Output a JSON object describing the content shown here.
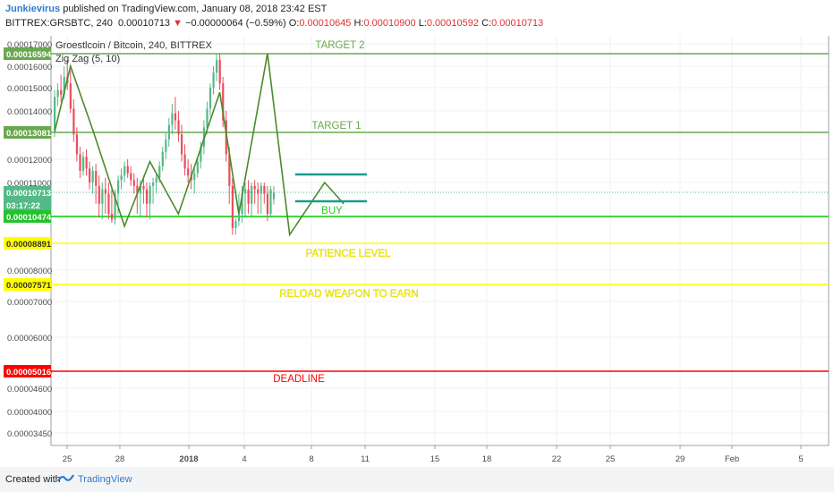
{
  "header": {
    "author": "Junkievirus",
    "published_text": " published on TradingView.com, January 08, 2018 23:42 EST",
    "symbol": "BITTREX:GRSBTC, 240",
    "last": "0.00010713",
    "change": "−0.00000064 (−0.59%)",
    "ohlc": {
      "o_label": "O:",
      "o": "0.00010645",
      "h_label": "H:",
      "h": "0.00010900",
      "l_label": "L:",
      "l": "0.00010592",
      "c_label": "C:",
      "c": "0.00010713"
    }
  },
  "legend": {
    "title": "Groestlcoin / Bitcoin, 240, BITTREX",
    "indicator": "Zig Zag (5, 10)"
  },
  "footer": {
    "created": "Created with",
    "brand": "TradingView"
  },
  "colors": {
    "up": "#53b987",
    "down": "#eb4d5c",
    "zigzag": "#4b8a2a",
    "target": "#6aa84f",
    "patience": "#ffff00",
    "deadline": "#ff0000",
    "buy_line": "#00cc00",
    "box": "#1a9c8c"
  },
  "chart_data": {
    "type": "candlestick",
    "title": "Groestlcoin / Bitcoin, 240, BITTREX",
    "y_ticks": [
      "0.00017000",
      "0.00016000",
      "0.00015000",
      "0.00014000",
      "0.00012000",
      "0.00011000",
      "0.00008000",
      "0.00007000",
      "0.00006000",
      "0.00005000",
      "0.00004600",
      "0.00004000",
      "0.00003450"
    ],
    "x_ticks": [
      "25",
      "28",
      "2018",
      "4",
      "8",
      "11",
      "15",
      "18",
      "22",
      "25",
      "29",
      "Feb",
      "5"
    ],
    "price_labels": [
      {
        "value": "0.00016594",
        "color": "#6aa84f"
      },
      {
        "value": "0.00013081",
        "color": "#6aa84f"
      },
      {
        "value": "0.00010713",
        "color": "#53b987"
      },
      {
        "value": "03:17:22",
        "color": "#53b987"
      },
      {
        "value": "0.00010474",
        "color": "#22c22c"
      },
      {
        "value": "0.00008891",
        "color": "#ffff00"
      },
      {
        "value": "0.00007571",
        "color": "#ffff00"
      },
      {
        "value": "0.00005016",
        "color": "#ff0000"
      }
    ],
    "levels": [
      {
        "name": "TARGET 2",
        "price": 0.00016594,
        "color": "#6aa84f"
      },
      {
        "name": "TARGET 1",
        "price": 0.00013081,
        "color": "#6aa84f"
      },
      {
        "name": "BUY",
        "price": 0.00010474,
        "color": "#00cc00"
      },
      {
        "name": "PATIENCE LEVEL",
        "price": 8.891e-05,
        "color": "#ffff00"
      },
      {
        "name": "RELOAD WEAPON TO EARN",
        "price": 7.571e-05,
        "color": "#ffff00"
      },
      {
        "name": "DEADLINE",
        "price": 5.016e-05,
        "color": "#ff0000"
      }
    ],
    "zigzag": [
      [
        0,
        0.000131
      ],
      [
        5,
        0.00016
      ],
      [
        12,
        0.000132
      ],
      [
        22,
        9.9e-05
      ],
      [
        30,
        0.000119
      ],
      [
        39,
        0.000105
      ],
      [
        52,
        0.000148
      ],
      [
        58,
        0.000105
      ],
      [
        67,
        0.000166
      ],
      [
        74,
        9.4e-05
      ],
      [
        85,
        0.00011
      ],
      [
        91,
        0.000106
      ]
    ],
    "candles": [
      [
        0.000132,
        0.000149,
        0.000129,
        0.000146
      ],
      [
        0.000146,
        0.000152,
        0.000142,
        0.000149
      ],
      [
        0.000149,
        0.000156,
        0.000144,
        0.000147
      ],
      [
        0.000147,
        0.00016,
        0.000145,
        0.000155
      ],
      [
        0.000155,
        0.000163,
        0.000149,
        0.000152
      ],
      [
        0.000152,
        0.000158,
        0.000139,
        0.000141
      ],
      [
        0.000141,
        0.000145,
        0.000127,
        0.00013
      ],
      [
        0.00013,
        0.000133,
        0.000119,
        0.000122
      ],
      [
        0.000122,
        0.000125,
        0.000112,
        0.000115
      ],
      [
        0.000115,
        0.000123,
        0.000113,
        0.000121
      ],
      [
        0.000121,
        0.000124,
        0.000113,
        0.000116
      ],
      [
        0.000116,
        0.000119,
        0.000108,
        0.00011
      ],
      [
        0.00011,
        0.000117,
        0.000107,
        0.000115
      ],
      [
        0.000115,
        0.000118,
        0.000106,
        0.000109
      ],
      [
        0.000109,
        0.000113,
        0.000104,
        0.000106
      ],
      [
        0.000106,
        0.00011,
        0.000103,
        0.000108
      ],
      [
        0.000108,
        0.000112,
        0.000105,
        0.000107
      ],
      [
        0.000107,
        0.00011,
        0.000103,
        0.000105
      ],
      [
        0.000105,
        0.000109,
        0.000101,
        0.000103
      ],
      [
        0.000103,
        0.000108,
        0.0001,
        0.000107
      ],
      [
        0.000107,
        0.000113,
        0.000105,
        0.000111
      ],
      [
        0.000111,
        0.000116,
        0.000108,
        0.000113
      ],
      [
        0.000113,
        0.000119,
        0.00011,
        0.000117
      ],
      [
        0.000117,
        0.00012,
        0.000112,
        0.000114
      ],
      [
        0.000114,
        0.000117,
        0.000109,
        0.000111
      ],
      [
        0.000111,
        0.000114,
        0.000107,
        0.000109
      ],
      [
        0.000109,
        0.000112,
        0.000105,
        0.000107
      ],
      [
        0.000107,
        0.000111,
        0.000104,
        0.000109
      ],
      [
        0.000109,
        0.000113,
        0.000106,
        0.000108
      ],
      [
        0.000108,
        0.00011,
        0.000104,
        0.000106
      ],
      [
        0.000106,
        0.00011,
        0.000103,
        0.000109
      ],
      [
        0.000109,
        0.000112,
        0.000106,
        0.00011
      ],
      [
        0.00011,
        0.000114,
        0.000107,
        0.000112
      ],
      [
        0.000112,
        0.000119,
        0.00011,
        0.000117
      ],
      [
        0.000117,
        0.000125,
        0.000115,
        0.000123
      ],
      [
        0.000123,
        0.000131,
        0.00012,
        0.000128
      ],
      [
        0.000128,
        0.000137,
        0.000125,
        0.000134
      ],
      [
        0.000134,
        0.000143,
        0.00013,
        0.000139
      ],
      [
        0.000139,
        0.000146,
        0.000132,
        0.000136
      ],
      [
        0.000136,
        0.00014,
        0.000127,
        0.00013
      ],
      [
        0.00013,
        0.000134,
        0.000119,
        0.000122
      ],
      [
        0.000122,
        0.000126,
        0.000113,
        0.000116
      ],
      [
        0.000116,
        0.00012,
        0.00011,
        0.000113
      ],
      [
        0.000113,
        0.000118,
        0.000108,
        0.000111
      ],
      [
        0.000111,
        0.000116,
        0.000107,
        0.000114
      ],
      [
        0.000114,
        0.000121,
        0.000112,
        0.000119
      ],
      [
        0.000119,
        0.000127,
        0.000116,
        0.000125
      ],
      [
        0.000125,
        0.000136,
        0.000122,
        0.000133
      ],
      [
        0.000133,
        0.000144,
        0.00013,
        0.000141
      ],
      [
        0.000141,
        0.000152,
        0.000138,
        0.00015
      ],
      [
        0.00015,
        0.00016,
        0.000147,
        0.000157
      ],
      [
        0.000157,
        0.000166,
        0.000153,
        0.000163
      ],
      [
        0.000163,
        0.000166,
        0.000149,
        0.000152
      ],
      [
        0.000152,
        0.000155,
        0.000133,
        0.000136
      ],
      [
        0.000136,
        0.00014,
        0.000119,
        0.000122
      ],
      [
        0.000122,
        0.000125,
        0.000106,
        0.000109
      ],
      [
        0.000109,
        0.000112,
        9.4e-05,
        9.8e-05
      ],
      [
        9.8e-05,
        0.000104,
        9.4e-05,
        0.000102
      ],
      [
        0.000102,
        0.000107,
        9.9e-05,
        0.000105
      ],
      [
        0.000105,
        0.000109,
        0.000101,
        0.000107
      ],
      [
        0.000107,
        0.00011,
        0.000104,
        0.000108
      ],
      [
        0.000108,
        0.000111,
        0.000105,
        0.000106
      ],
      [
        0.000106,
        0.00011,
        0.000104,
        0.000109
      ],
      [
        0.000109,
        0.000111,
        0.000106,
        0.000108
      ],
      [
        0.000108,
        0.00011,
        0.000105,
        0.000107
      ],
      [
        0.000107,
        0.00011,
        0.000105,
        0.000109
      ],
      [
        0.000109,
        0.00011,
        0.000106,
        0.000107
      ],
      [
        0.000107,
        0.000109,
        0.000102,
        0.000105
      ],
      [
        0.000105,
        0.000109,
        0.000104,
        0.000108
      ],
      [
        0.00010645,
        0.000109,
        0.00010592,
        0.00010713
      ]
    ]
  }
}
